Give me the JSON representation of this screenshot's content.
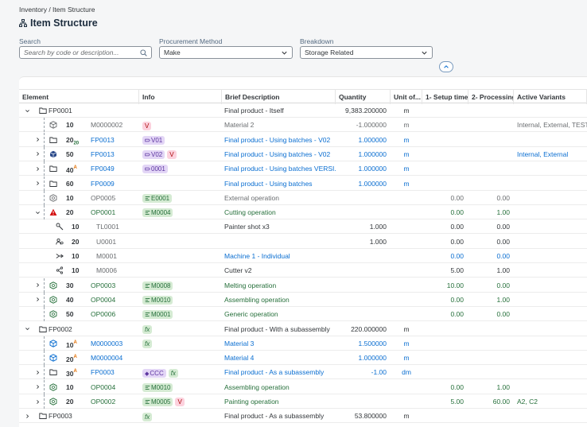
{
  "breadcrumb": "Inventory / Item Structure",
  "title": "Item Structure",
  "filters": {
    "search_label": "Search",
    "search_placeholder": "Search by code or description...",
    "procurement_label": "Procurement Method",
    "procurement_value": "Make",
    "breakdown_label": "Breakdown",
    "breakdown_value": "Storage Related"
  },
  "columns": [
    "Element",
    "Info",
    "Brief Description",
    "Quantity",
    "Unit of...",
    "1- Setup time",
    "2- Processing",
    "Active Variants"
  ],
  "rows": [
    {
      "level": 0,
      "chev": "down",
      "icon": "folder",
      "pos": "",
      "posmark": "",
      "code": "FP0001",
      "codeColor": "dark",
      "tags": [],
      "desc": "Final product - Itself",
      "descColor": "dark",
      "qty": "9,383.200000",
      "qtyColor": "dark",
      "unit": "m",
      "setup": "",
      "proc": "",
      "variants": "",
      "varColor": "grey"
    },
    {
      "level": 1,
      "chev": "",
      "icon": "cube",
      "pos": "10",
      "posmark": "",
      "code": "M0000002",
      "codeColor": "grey",
      "tags": [
        {
          "t": "V",
          "k": "v"
        }
      ],
      "desc": "Material 2",
      "descColor": "grey",
      "qty": "-1.000000",
      "qtyColor": "grey",
      "unit": "m",
      "setup": "",
      "proc": "",
      "variants": "Internal, External, TEST",
      "varColor": "grey"
    },
    {
      "level": 1,
      "chev": "right",
      "icon": "folder",
      "pos": "20",
      "posmark": "sub20",
      "code": "FP0013",
      "codeColor": "blue",
      "tags": [
        {
          "t": "V01",
          "k": "purple"
        }
      ],
      "desc": "Final product - Using batches - V02",
      "descColor": "blue",
      "qty": "1.000000",
      "qtyColor": "blue",
      "unit": "m",
      "setup": "",
      "proc": "",
      "variants": "",
      "varColor": "grey"
    },
    {
      "level": 1,
      "chev": "right",
      "icon": "hexfill",
      "pos": "50",
      "posmark": "",
      "code": "FP0013",
      "codeColor": "blue",
      "tags": [
        {
          "t": "V02",
          "k": "purple"
        },
        {
          "t": "V",
          "k": "v"
        }
      ],
      "desc": "Final product - Using batches - V02",
      "descColor": "blue",
      "qty": "1.000000",
      "qtyColor": "blue",
      "unit": "m",
      "setup": "",
      "proc": "",
      "variants": "Internal, External",
      "varColor": "blue"
    },
    {
      "level": 1,
      "chev": "right",
      "icon": "folder",
      "pos": "40",
      "posmark": "A",
      "code": "FP0049",
      "codeColor": "blue",
      "tags": [
        {
          "t": "0001",
          "k": "purple"
        }
      ],
      "desc": "Final product - Using batches VERSI...",
      "descColor": "blue",
      "qty": "1.000000",
      "qtyColor": "blue",
      "unit": "m",
      "setup": "",
      "proc": "",
      "variants": "",
      "varColor": "grey"
    },
    {
      "level": 1,
      "chev": "right",
      "icon": "folder",
      "pos": "60",
      "posmark": "",
      "code": "FP0009",
      "codeColor": "blue",
      "tags": [],
      "desc": "Final product - Using batches",
      "descColor": "blue",
      "qty": "1.000000",
      "qtyColor": "blue",
      "unit": "m",
      "setup": "",
      "proc": "",
      "variants": "",
      "varColor": "grey"
    },
    {
      "level": 1,
      "chev": "",
      "icon": "gear",
      "pos": "10",
      "posmark": "",
      "code": "OP0005",
      "codeColor": "grey",
      "tags": [
        {
          "t": "E0001",
          "k": "green"
        }
      ],
      "desc": "External operation",
      "descColor": "grey",
      "qty": "",
      "qtyColor": "grey",
      "unit": "",
      "setup": "0.00",
      "proc": "0.00",
      "variants": "",
      "varColor": "grey"
    },
    {
      "level": 1,
      "chev": "down",
      "icon": "warn",
      "pos": "20",
      "posmark": "",
      "code": "OP0001",
      "codeColor": "green",
      "tags": [
        {
          "t": "M0004",
          "k": "green"
        }
      ],
      "desc": "Cutting operation",
      "descColor": "green",
      "qty": "",
      "qtyColor": "green",
      "unit": "",
      "setup": "0.00",
      "proc": "1.00",
      "variants": "",
      "varColor": "grey"
    },
    {
      "level": 2,
      "chev": "",
      "icon": "tool",
      "pos": "10",
      "posmark": "",
      "code": "TL0001",
      "codeColor": "grey",
      "tags": [],
      "desc": "Painter shot x3",
      "descColor": "dark",
      "qty": "1.000",
      "qtyColor": "dark",
      "unit": "",
      "setup": "0.00",
      "proc": "0.00",
      "variants": "",
      "varColor": "grey"
    },
    {
      "level": 2,
      "chev": "",
      "icon": "user",
      "pos": "20",
      "posmark": "",
      "code": "U0001",
      "codeColor": "grey",
      "tags": [],
      "desc": "",
      "descColor": "dark",
      "qty": "1.000",
      "qtyColor": "dark",
      "unit": "",
      "setup": "0.00",
      "proc": "0.00",
      "variants": "",
      "varColor": "grey"
    },
    {
      "level": 2,
      "chev": "",
      "icon": "machine",
      "pos": "10",
      "posmark": "",
      "code": "M0001",
      "codeColor": "grey",
      "tags": [],
      "desc": "Machine 1 - Individual",
      "descColor": "blue",
      "qty": "",
      "qtyColor": "dark",
      "unit": "",
      "setup": "0.00",
      "proc": "0.00",
      "variants": "",
      "varColor": "grey"
    },
    {
      "level": 2,
      "chev": "",
      "icon": "share",
      "pos": "10",
      "posmark": "",
      "code": "M0006",
      "codeColor": "grey",
      "tags": [],
      "desc": "Cutter v2",
      "descColor": "dark",
      "qty": "",
      "qtyColor": "dark",
      "unit": "",
      "setup": "5.00",
      "proc": "1.00",
      "variants": "",
      "varColor": "grey"
    },
    {
      "level": 1,
      "chev": "right",
      "icon": "gearg",
      "pos": "30",
      "posmark": "",
      "code": "OP0003",
      "codeColor": "green",
      "tags": [
        {
          "t": "M0008",
          "k": "green"
        }
      ],
      "desc": "Melting operation",
      "descColor": "green",
      "qty": "",
      "qtyColor": "green",
      "unit": "",
      "setup": "10.00",
      "proc": "0.00",
      "variants": "",
      "varColor": "grey"
    },
    {
      "level": 1,
      "chev": "right",
      "icon": "gearg",
      "pos": "40",
      "posmark": "",
      "code": "OP0004",
      "codeColor": "green",
      "tags": [
        {
          "t": "M0010",
          "k": "green"
        }
      ],
      "desc": "Assembling operation",
      "descColor": "green",
      "qty": "",
      "qtyColor": "green",
      "unit": "",
      "setup": "0.00",
      "proc": "1.00",
      "variants": "",
      "varColor": "grey"
    },
    {
      "level": 1,
      "chev": "",
      "icon": "gearg",
      "pos": "50",
      "posmark": "",
      "code": "OP0006",
      "codeColor": "green",
      "tags": [
        {
          "t": "M0001",
          "k": "green"
        }
      ],
      "desc": "Generic operation",
      "descColor": "green",
      "qty": "",
      "qtyColor": "green",
      "unit": "",
      "setup": "0.00",
      "proc": "0.00",
      "variants": "",
      "varColor": "grey"
    },
    {
      "level": 0,
      "chev": "down",
      "icon": "folder",
      "pos": "",
      "posmark": "",
      "code": "FP0002",
      "codeColor": "dark",
      "tags": [
        {
          "t": "fx",
          "k": "fx"
        }
      ],
      "desc": "Final product - With a subassembly",
      "descColor": "dark",
      "qty": "220.000000",
      "qtyColor": "dark",
      "unit": "m",
      "setup": "",
      "proc": "",
      "variants": "",
      "varColor": "grey"
    },
    {
      "level": 1,
      "chev": "",
      "icon": "cubeb",
      "pos": "10",
      "posmark": "A",
      "code": "M0000003",
      "codeColor": "blue",
      "tags": [
        {
          "t": "fx",
          "k": "fx"
        }
      ],
      "desc": "Material 3",
      "descColor": "blue",
      "qty": "1.500000",
      "qtyColor": "blue",
      "unit": "m",
      "setup": "",
      "proc": "",
      "variants": "",
      "varColor": "grey"
    },
    {
      "level": 1,
      "chev": "",
      "icon": "cubeb",
      "pos": "20",
      "posmark": "A",
      "code": "M0000004",
      "codeColor": "blue",
      "tags": [],
      "desc": "Material 4",
      "descColor": "blue",
      "qty": "1.000000",
      "qtyColor": "blue",
      "unit": "m",
      "setup": "",
      "proc": "",
      "variants": "",
      "varColor": "grey"
    },
    {
      "level": 1,
      "chev": "right",
      "icon": "folder",
      "pos": "30",
      "posmark": "A",
      "code": "FP0003",
      "codeColor": "blue",
      "tags": [
        {
          "t": "CCC",
          "k": "purple"
        },
        {
          "t": "fx",
          "k": "fx"
        }
      ],
      "desc": "Final product - As a subassembly",
      "descColor": "blue",
      "qty": "-1.00",
      "qtyColor": "blue",
      "unit": "dm",
      "setup": "",
      "proc": "",
      "variants": "",
      "varColor": "grey"
    },
    {
      "level": 1,
      "chev": "right",
      "icon": "gearg",
      "pos": "10",
      "posmark": "",
      "code": "OP0004",
      "codeColor": "green",
      "tags": [
        {
          "t": "M0010",
          "k": "green"
        }
      ],
      "desc": "Assembling operation",
      "descColor": "green",
      "qty": "",
      "qtyColor": "green",
      "unit": "",
      "setup": "0.00",
      "proc": "1.00",
      "variants": "",
      "varColor": "grey"
    },
    {
      "level": 1,
      "chev": "right",
      "icon": "gearg",
      "pos": "20",
      "posmark": "",
      "code": "OP0002",
      "codeColor": "green",
      "tags": [
        {
          "t": "M0005",
          "k": "green"
        },
        {
          "t": "V",
          "k": "v"
        }
      ],
      "desc": "Painting operation",
      "descColor": "green",
      "qty": "",
      "qtyColor": "green",
      "unit": "",
      "setup": "5.00",
      "proc": "60.00",
      "variants": "A2, C2",
      "varColor": "green"
    },
    {
      "level": 0,
      "chev": "right",
      "icon": "folder",
      "pos": "",
      "posmark": "",
      "code": "FP0003",
      "codeColor": "dark",
      "tags": [
        {
          "t": "fx",
          "k": "fx"
        }
      ],
      "desc": "Final product - As a subassembly",
      "descColor": "dark",
      "qty": "53.800000",
      "qtyColor": "dark",
      "unit": "m",
      "setup": "",
      "proc": "",
      "variants": "",
      "varColor": "grey"
    }
  ]
}
